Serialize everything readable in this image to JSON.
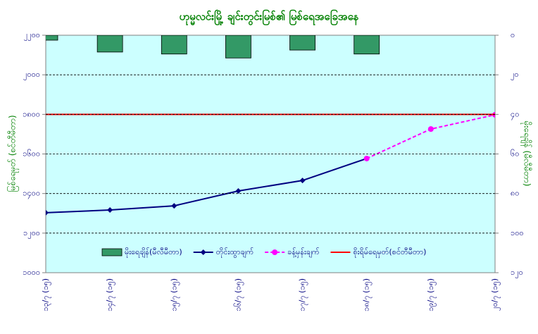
{
  "chart_data": {
    "type": "combo",
    "title": "ဟုမ္မလင်းမြို့ ချင်းတွင်းမြစ်၏ မြစ်ရေအခြေအနေ",
    "y_label": "မြစ်ရေမှတ် (စင်တီမီတာ)",
    "y2_label": "မိုးရေချိန် (မီလီမီတာ)",
    "categories": [
      "၁၃/၇ (၁၅)",
      "၁၄/၇ (၁၅)",
      "၁၅/၇ (၁၅)",
      "၁၆/၇ (၁၅)",
      "၁၇/၇ (၁၅)",
      "၁၈/၇ (၁၅)",
      "၁၉/၇ (၁၅)",
      "၂၀/၇ (၁၅)"
    ],
    "ylim": [
      1000,
      2200
    ],
    "yticks": [
      {
        "value": 1000,
        "label": "၁၀၀၀"
      },
      {
        "value": 1200,
        "label": "၁၂၀၀"
      },
      {
        "value": 1400,
        "label": "၁၄၀၀"
      },
      {
        "value": 1600,
        "label": "၁၆၀၀"
      },
      {
        "value": 1800,
        "label": "၁၈၀၀"
      },
      {
        "value": 2000,
        "label": "၂၀၀၀"
      },
      {
        "value": 2200,
        "label": "၂၂၀၀"
      }
    ],
    "y2lim": [
      120,
      0
    ],
    "y2ticks": [
      {
        "value": 0,
        "label": "၀"
      },
      {
        "value": 20,
        "label": "၂၀"
      },
      {
        "value": 40,
        "label": "၄၀"
      },
      {
        "value": 60,
        "label": "၆၀"
      },
      {
        "value": 80,
        "label": "၈၀"
      },
      {
        "value": 100,
        "label": "၁၀၀"
      },
      {
        "value": 120,
        "label": "၁၂၀"
      }
    ],
    "grid": true,
    "series": [
      {
        "name": "မိုးရေချိန်(မီလီမီတာ)",
        "type": "bar",
        "axis": "y2",
        "color": "#339966",
        "values": [
          2.5,
          8.5,
          9.5,
          11.5,
          7.5,
          9.5,
          null,
          null
        ]
      },
      {
        "name": "တိုင်းထွာချက်",
        "type": "line",
        "marker": "diamond",
        "color": "#000080",
        "values": [
          1303,
          1317,
          1338,
          1413,
          1466,
          1577,
          null,
          null
        ]
      },
      {
        "name": "ခန့်မှန်းချက်",
        "type": "line",
        "marker": "circle",
        "dashed": true,
        "color": "#ff00ff",
        "values": [
          null,
          null,
          null,
          null,
          null,
          1577,
          1726,
          1798
        ]
      },
      {
        "name": "စိုးရိမ်ရေမှတ်(စင်တီမီတာ)",
        "type": "line",
        "color": "#ff0000",
        "values": [
          1800,
          1800,
          1800,
          1800,
          1800,
          1800,
          1800,
          1800
        ]
      }
    ]
  }
}
